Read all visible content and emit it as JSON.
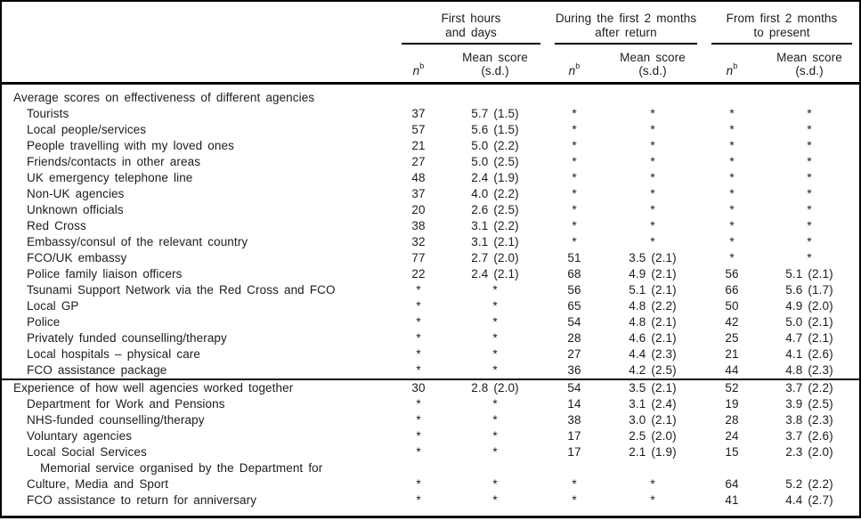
{
  "table": {
    "col_groups": [
      {
        "line1": "First hours",
        "line2": "and days"
      },
      {
        "line1": "During the first 2 months",
        "line2": "after return"
      },
      {
        "line1": "From first 2 months",
        "line2": "to present"
      }
    ],
    "subheader": {
      "n": "n",
      "n_sup": "b",
      "mean_line1": "Mean score",
      "mean_line2": "(s.d.)"
    },
    "rows": [
      {
        "section": true,
        "label": "Average scores on effectiveness of different agencies",
        "v": [
          "",
          "",
          "",
          "",
          "",
          ""
        ]
      },
      {
        "indent": true,
        "label": "Tourists",
        "v": [
          "37",
          "5.7 (1.5)",
          "*",
          "*",
          "*",
          "*"
        ]
      },
      {
        "indent": true,
        "label": "Local people/services",
        "v": [
          "57",
          "5.6 (1.5)",
          "*",
          "*",
          "*",
          "*"
        ]
      },
      {
        "indent": true,
        "label": "People travelling with my loved ones",
        "v": [
          "21",
          "5.0 (2.2)",
          "*",
          "*",
          "*",
          "*"
        ]
      },
      {
        "indent": true,
        "label": "Friends/contacts in other areas",
        "v": [
          "27",
          "5.0 (2.5)",
          "*",
          "*",
          "*",
          "*"
        ]
      },
      {
        "indent": true,
        "label": "UK emergency telephone line",
        "v": [
          "48",
          "2.4 (1.9)",
          "*",
          "*",
          "*",
          "*"
        ]
      },
      {
        "indent": true,
        "label": "Non-UK agencies",
        "v": [
          "37",
          "4.0 (2.2)",
          "*",
          "*",
          "*",
          "*"
        ]
      },
      {
        "indent": true,
        "label": "Unknown officials",
        "v": [
          "20",
          "2.6 (2.5)",
          "*",
          "*",
          "*",
          "*"
        ]
      },
      {
        "indent": true,
        "label": "Red Cross",
        "v": [
          "38",
          "3.1 (2.2)",
          "*",
          "*",
          "*",
          "*"
        ]
      },
      {
        "indent": true,
        "label": "Embassy/consul of the relevant country",
        "v": [
          "32",
          "3.1 (2.1)",
          "*",
          "*",
          "*",
          "*"
        ]
      },
      {
        "indent": true,
        "label": "FCO/UK embassy",
        "v": [
          "77",
          "2.7 (2.0)",
          "51",
          "3.5 (2.1)",
          "*",
          "*"
        ]
      },
      {
        "indent": true,
        "label": "Police family liaison officers",
        "v": [
          "22",
          "2.4 (2.1)",
          "68",
          "4.9 (2.1)",
          "56",
          "5.1 (2.1)"
        ]
      },
      {
        "indent": true,
        "label": "Tsunami Support Network via the Red Cross and FCO",
        "v": [
          "*",
          "*",
          "56",
          "5.1 (2.1)",
          "66",
          "5.6 (1.7)"
        ]
      },
      {
        "indent": true,
        "label": "Local GP",
        "v": [
          "*",
          "*",
          "65",
          "4.8 (2.2)",
          "50",
          "4.9 (2.0)"
        ]
      },
      {
        "indent": true,
        "label": "Police",
        "v": [
          "*",
          "*",
          "54",
          "4.8 (2.1)",
          "42",
          "5.0 (2.1)"
        ]
      },
      {
        "indent": true,
        "label": "Privately funded counselling/therapy",
        "v": [
          "*",
          "*",
          "28",
          "4.6 (2.1)",
          "25",
          "4.7 (2.1)"
        ]
      },
      {
        "indent": true,
        "label": "Local hospitals – physical care",
        "v": [
          "*",
          "*",
          "27",
          "4.4 (2.3)",
          "21",
          "4.1 (2.6)"
        ]
      },
      {
        "indent": true,
        "label": "FCO assistance package",
        "v": [
          "*",
          "*",
          "36",
          "4.2 (2.5)",
          "44",
          "4.8 (2.3)"
        ]
      },
      {
        "section": true,
        "divider": true,
        "label": "Experience of how well agencies worked together",
        "v": [
          "30",
          "2.8 (2.0)",
          "54",
          "3.5 (2.1)",
          "52",
          "3.7 (2.2)"
        ]
      },
      {
        "indent": true,
        "label": "Department for Work and Pensions",
        "v": [
          "*",
          "*",
          "14",
          "3.1 (2.4)",
          "19",
          "3.9 (2.5)"
        ]
      },
      {
        "indent": true,
        "label": "NHS-funded counselling/therapy",
        "v": [
          "*",
          "*",
          "38",
          "3.0 (2.1)",
          "28",
          "3.8 (2.3)"
        ]
      },
      {
        "indent": true,
        "label": "Voluntary agencies",
        "v": [
          "*",
          "*",
          "17",
          "2.5 (2.0)",
          "24",
          "3.7 (2.6)"
        ]
      },
      {
        "indent": true,
        "label": "Local Social Services",
        "v": [
          "*",
          "*",
          "17",
          "2.1 (1.9)",
          "15",
          "2.3 (2.0)"
        ]
      },
      {
        "indent": true,
        "hang": true,
        "label": "Memorial service organised by the Department for",
        "label2": "Culture, Media and Sport",
        "v": [
          "*",
          "*",
          "*",
          "*",
          "64",
          "5.2 (2.2)"
        ]
      },
      {
        "indent": true,
        "label": "FCO assistance to return for anniversary",
        "v": [
          "*",
          "*",
          "*",
          "*",
          "41",
          "4.4 (2.7)"
        ]
      }
    ]
  }
}
